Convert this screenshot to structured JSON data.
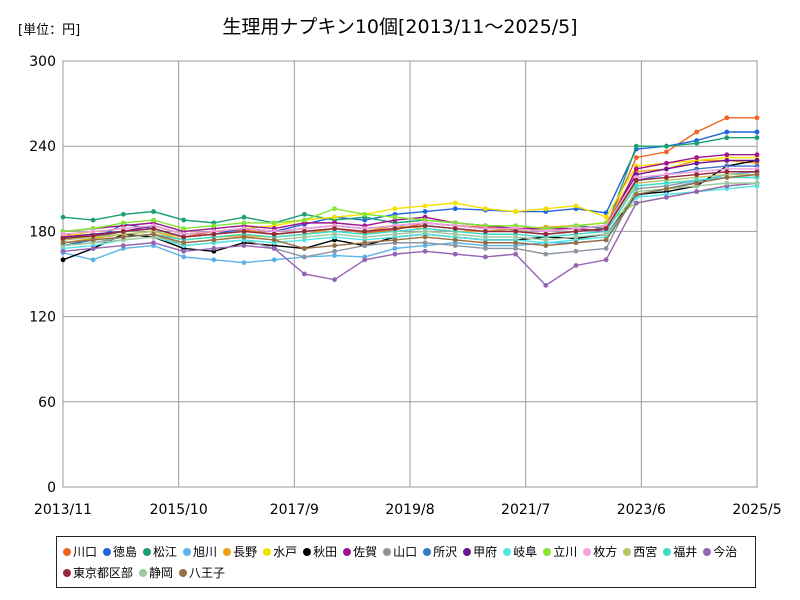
{
  "header": {
    "unit_label": "[単位：円]",
    "title": "生理用ナプキン10個[2013/11～2025/5]"
  },
  "chart_data": {
    "type": "line",
    "title": "生理用ナプキン10個[2013/11～2025/5]",
    "ylabel": "[単位：円]",
    "ylim": [
      0,
      300
    ],
    "yticks": [
      0,
      60,
      120,
      180,
      240,
      300
    ],
    "xtick_labels": [
      "2013/11",
      "2015/10",
      "2017/9",
      "2019/8",
      "2021/7",
      "2023/6",
      "2025/5"
    ],
    "grid": true,
    "legend_position": "bottom",
    "x": [
      "2013/11",
      "2014/5",
      "2014/11",
      "2015/5",
      "2015/11",
      "2016/5",
      "2016/11",
      "2017/5",
      "2017/11",
      "2018/5",
      "2018/11",
      "2019/5",
      "2019/11",
      "2020/5",
      "2020/11",
      "2021/5",
      "2021/11",
      "2022/5",
      "2022/11",
      "2023/5",
      "2023/11",
      "2024/5",
      "2024/11",
      "2025/5"
    ],
    "series": [
      {
        "name": "川口",
        "color": "#f0641e",
        "values": [
          178,
          176,
          180,
          182,
          176,
          180,
          181,
          178,
          180,
          182,
          179,
          181,
          186,
          184,
          183,
          181,
          182,
          182,
          184,
          232,
          236,
          250,
          260,
          260
        ]
      },
      {
        "name": "徳島",
        "color": "#1e64dc",
        "values": [
          170,
          174,
          185,
          182,
          176,
          178,
          182,
          180,
          185,
          190,
          188,
          192,
          194,
          196,
          195,
          194,
          194,
          196,
          193,
          238,
          240,
          244,
          250,
          250
        ]
      },
      {
        "name": "松江",
        "color": "#19a070",
        "values": [
          190,
          188,
          192,
          194,
          188,
          186,
          190,
          186,
          192,
          188,
          190,
          186,
          188,
          186,
          184,
          184,
          182,
          184,
          182,
          240,
          240,
          242,
          246,
          246
        ]
      },
      {
        "name": "旭川",
        "color": "#5ab4e6",
        "values": [
          165,
          160,
          168,
          170,
          162,
          160,
          158,
          160,
          162,
          163,
          162,
          168,
          170,
          172,
          170,
          170,
          172,
          172,
          174,
          205,
          210,
          215,
          220,
          222
        ]
      },
      {
        "name": "長野",
        "color": "#f0a014",
        "values": [
          172,
          175,
          178,
          180,
          174,
          176,
          177,
          176,
          178,
          182,
          180,
          184,
          182,
          180,
          180,
          182,
          183,
          184,
          186,
          222,
          224,
          230,
          230,
          228
        ]
      },
      {
        "name": "水戸",
        "color": "#f5e100",
        "values": [
          176,
          180,
          182,
          184,
          178,
          180,
          182,
          184,
          188,
          190,
          192,
          196,
          198,
          200,
          196,
          194,
          196,
          198,
          190,
          226,
          228,
          230,
          232,
          232
        ]
      },
      {
        "name": "秋田",
        "color": "#000000",
        "values": [
          160,
          168,
          178,
          176,
          168,
          166,
          172,
          170,
          168,
          174,
          170,
          176,
          178,
          176,
          174,
          174,
          176,
          175,
          178,
          206,
          208,
          212,
          226,
          230
        ]
      },
      {
        "name": "佐賀",
        "color": "#a0148c",
        "values": [
          180,
          182,
          184,
          186,
          180,
          182,
          184,
          182,
          186,
          186,
          184,
          188,
          190,
          186,
          184,
          182,
          182,
          182,
          180,
          224,
          228,
          232,
          234,
          234
        ]
      },
      {
        "name": "山口",
        "color": "#8c96a0",
        "values": [
          170,
          172,
          176,
          178,
          170,
          172,
          174,
          168,
          162,
          166,
          170,
          172,
          172,
          170,
          168,
          168,
          164,
          166,
          168,
          210,
          212,
          216,
          218,
          218
        ]
      },
      {
        "name": "所沢",
        "color": "#3c78c8",
        "values": [
          174,
          176,
          180,
          182,
          176,
          178,
          180,
          178,
          180,
          182,
          180,
          182,
          184,
          182,
          180,
          180,
          178,
          180,
          182,
          216,
          220,
          224,
          226,
          226
        ]
      },
      {
        "name": "甲府",
        "color": "#6e1496",
        "values": [
          176,
          178,
          180,
          184,
          178,
          180,
          182,
          180,
          182,
          184,
          182,
          184,
          186,
          184,
          182,
          182,
          180,
          182,
          184,
          220,
          224,
          228,
          230,
          230
        ]
      },
      {
        "name": "岐阜",
        "color": "#50e6e6",
        "values": [
          168,
          170,
          174,
          176,
          170,
          172,
          174,
          172,
          174,
          176,
          174,
          176,
          178,
          176,
          174,
          174,
          172,
          174,
          176,
          204,
          206,
          208,
          210,
          212
        ]
      },
      {
        "name": "立川",
        "color": "#82e632",
        "values": [
          180,
          182,
          186,
          188,
          182,
          184,
          186,
          186,
          188,
          196,
          192,
          190,
          188,
          186,
          184,
          184,
          182,
          184,
          186,
          200,
          204,
          208,
          212,
          214
        ]
      },
      {
        "name": "枚方",
        "color": "#f0a0dc",
        "values": [
          178,
          180,
          182,
          184,
          178,
          180,
          182,
          180,
          182,
          184,
          182,
          184,
          186,
          184,
          182,
          182,
          180,
          182,
          184,
          218,
          220,
          222,
          224,
          224
        ]
      },
      {
        "name": "西宮",
        "color": "#b4c864",
        "values": [
          174,
          176,
          178,
          180,
          176,
          178,
          180,
          178,
          180,
          182,
          180,
          182,
          184,
          182,
          180,
          180,
          178,
          180,
          182,
          214,
          216,
          218,
          220,
          220
        ]
      },
      {
        "name": "福井",
        "color": "#3cdcc8",
        "values": [
          172,
          174,
          176,
          178,
          174,
          176,
          178,
          176,
          178,
          180,
          178,
          180,
          182,
          180,
          178,
          178,
          176,
          178,
          180,
          212,
          214,
          216,
          218,
          218
        ]
      },
      {
        "name": "今治",
        "color": "#9664b4",
        "values": [
          166,
          168,
          170,
          172,
          166,
          168,
          170,
          168,
          150,
          146,
          160,
          164,
          166,
          164,
          162,
          164,
          142,
          156,
          160,
          200,
          204,
          208,
          212,
          214
        ]
      },
      {
        "name": "東京都区部",
        "color": "#96283c",
        "values": [
          175,
          177,
          180,
          182,
          176,
          178,
          180,
          178,
          180,
          182,
          180,
          182,
          184,
          182,
          180,
          180,
          178,
          180,
          182,
          216,
          218,
          220,
          222,
          222
        ]
      },
      {
        "name": "静岡",
        "color": "#a0c8a0",
        "values": [
          170,
          172,
          174,
          176,
          172,
          174,
          176,
          174,
          176,
          178,
          176,
          178,
          180,
          178,
          176,
          176,
          174,
          176,
          178,
          208,
          210,
          212,
          214,
          214
        ]
      },
      {
        "name": "八王子",
        "color": "#966e46",
        "values": [
          172,
          174,
          176,
          178,
          172,
          174,
          176,
          174,
          168,
          170,
          172,
          174,
          176,
          174,
          172,
          172,
          170,
          172,
          174,
          206,
          210,
          214,
          218,
          220
        ]
      }
    ]
  }
}
